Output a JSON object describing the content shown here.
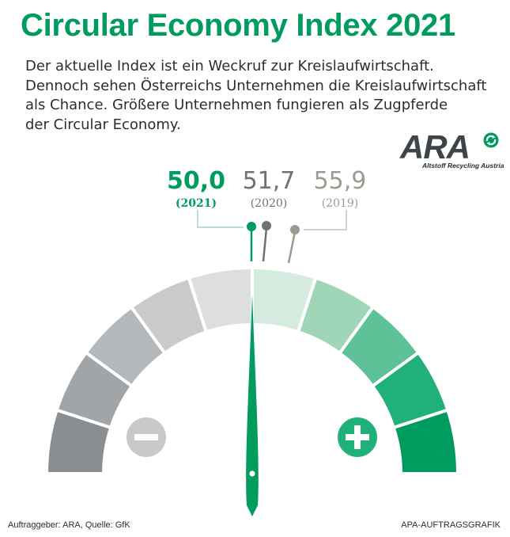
{
  "title": "Circular Economy Index 2021",
  "intro": {
    "line1": "Der aktuelle Index ist ein Weckruf zur Kreislaufwirtschaft.",
    "line2": "Dennoch sehen Österreichs Unternehmen die Kreislaufwirtschaft",
    "line3": "als Chance. Größere Unternehmen fungieren als Zugpferde",
    "line4": "der Circular Economy."
  },
  "logo": {
    "word": "ARA",
    "subtitle": "Altstoff Recycling Austria",
    "icon": "recycling-arrows-icon"
  },
  "values": [
    {
      "value": "50,0",
      "year": "(2021)",
      "color": "#009b5e"
    },
    {
      "value": "51,7",
      "year": "(2020)",
      "color": "#6b7378"
    },
    {
      "value": "55,9",
      "year": "(2019)",
      "color": "#9a9c90"
    }
  ],
  "gauge": {
    "min_icon": "minus-icon",
    "max_icon": "plus-icon",
    "needle_value": 50.0,
    "segment_colors": [
      "#8a8e91",
      "#a1a5a8",
      "#b5b8ba",
      "#c8cacb",
      "#dddedf",
      "#d6ebdf",
      "#9fd6b8",
      "#5ec197",
      "#20b07a",
      "#009b5e"
    ]
  },
  "footer": {
    "client": "Auftraggeber: ARA, Quelle: GfK",
    "agency": "APA-AUFTRAGSGRAFIK"
  }
}
